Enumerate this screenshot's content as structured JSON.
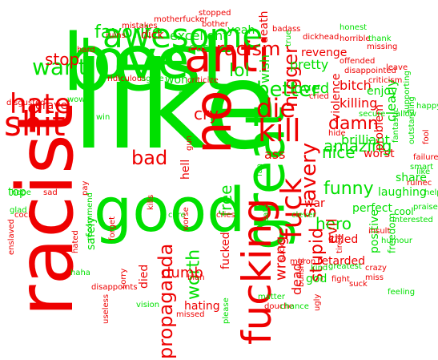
{
  "colors": {
    "positive": "#00e000",
    "negative": "#ee0000"
  },
  "words": [
    {
      "t": "like",
      "c": "positive"
    },
    {
      "t": "best",
      "c": "positive"
    },
    {
      "t": "racist",
      "c": "negative"
    },
    {
      "t": "good",
      "c": "positive"
    },
    {
      "t": "love",
      "c": "positive"
    },
    {
      "t": "no",
      "c": "negative"
    },
    {
      "t": "great",
      "c": "positive"
    },
    {
      "t": "anti",
      "c": "negative"
    },
    {
      "t": "awesome",
      "c": "positive"
    },
    {
      "t": "fucking",
      "c": "negative"
    },
    {
      "t": "shit",
      "c": "negative"
    },
    {
      "t": "hate",
      "c": "negative"
    },
    {
      "t": "kill",
      "c": "negative"
    },
    {
      "t": "fuck",
      "c": "negative"
    },
    {
      "t": "die",
      "c": "negative"
    },
    {
      "t": "better",
      "c": "positive"
    },
    {
      "t": "slavery",
      "c": "negative"
    },
    {
      "t": "want",
      "c": "positive"
    },
    {
      "t": "worth",
      "c": "positive"
    },
    {
      "t": "propaganda",
      "c": "negative"
    },
    {
      "t": "nigger",
      "c": "negative"
    },
    {
      "t": "racism",
      "c": "negative"
    },
    {
      "t": "favorite",
      "c": "positive"
    },
    {
      "t": "bad",
      "c": "negative"
    },
    {
      "t": "stop",
      "c": "negative"
    },
    {
      "t": "lol",
      "c": "positive"
    },
    {
      "t": "funny",
      "c": "positive"
    },
    {
      "t": "amazing",
      "c": "positive"
    },
    {
      "t": "damn",
      "c": "negative"
    },
    {
      "t": "nice",
      "c": "positive"
    },
    {
      "t": "stupid",
      "c": "negative"
    },
    {
      "t": "wrong",
      "c": "negative"
    },
    {
      "t": "free",
      "c": "positive"
    },
    {
      "t": "cry",
      "c": "negative"
    },
    {
      "t": "hero",
      "c": "positive"
    },
    {
      "t": "loved",
      "c": "positive"
    },
    {
      "t": "brilliant",
      "c": "positive"
    },
    {
      "t": "killing",
      "c": "negative"
    },
    {
      "t": "evil",
      "c": "negative"
    },
    {
      "t": "ass",
      "c": "negative"
    },
    {
      "t": "dead",
      "c": "negative"
    },
    {
      "t": "dumb",
      "c": "negative"
    },
    {
      "t": "hating",
      "c": "negative"
    },
    {
      "t": "won",
      "c": "positive"
    },
    {
      "t": "excellent",
      "c": "positive"
    },
    {
      "t": "pretty",
      "c": "positive"
    },
    {
      "t": "bitch",
      "c": "negative"
    },
    {
      "t": "violence",
      "c": "negative"
    },
    {
      "t": "clearly",
      "c": "positive"
    },
    {
      "t": "problem",
      "c": "negative"
    },
    {
      "t": "worst",
      "c": "negative"
    },
    {
      "t": "share",
      "c": "positive"
    },
    {
      "t": "laughing",
      "c": "positive"
    },
    {
      "t": "perfect",
      "c": "positive"
    },
    {
      "t": "killed",
      "c": "negative"
    },
    {
      "t": "retarded",
      "c": "negative"
    },
    {
      "t": "positive",
      "c": "positive"
    },
    {
      "t": "war",
      "c": "negative"
    },
    {
      "t": "god",
      "c": "positive"
    },
    {
      "t": "cool",
      "c": "positive"
    },
    {
      "t": "freedom",
      "c": "positive"
    },
    {
      "t": "safely",
      "c": "positive"
    },
    {
      "t": "top",
      "c": "positive"
    },
    {
      "t": "grave",
      "c": "negative"
    },
    {
      "t": "died",
      "c": "negative"
    },
    {
      "t": "fucked",
      "c": "negative"
    },
    {
      "t": "hell",
      "c": "negative"
    },
    {
      "t": "wish",
      "c": "positive"
    },
    {
      "t": "revenge",
      "c": "negative"
    },
    {
      "t": "enjoy",
      "c": "positive"
    },
    {
      "t": "easy",
      "c": "positive"
    },
    {
      "t": "yeah",
      "c": "positive"
    },
    {
      "t": "dick",
      "c": "negative"
    },
    {
      "t": "death",
      "c": "negative"
    },
    {
      "t": "offended",
      "c": "negative"
    },
    {
      "t": "disappointed",
      "c": "negative"
    },
    {
      "t": "criticism",
      "c": "negative"
    },
    {
      "t": "dickhead",
      "c": "negative"
    },
    {
      "t": "horrible",
      "c": "negative"
    },
    {
      "t": "thank",
      "c": "positive"
    },
    {
      "t": "honest",
      "c": "positive"
    },
    {
      "t": "missing",
      "c": "negative"
    },
    {
      "t": "badass",
      "c": "negative"
    },
    {
      "t": "true",
      "c": "positive"
    },
    {
      "t": "bother",
      "c": "negative"
    },
    {
      "t": "stopped",
      "c": "negative"
    },
    {
      "t": "motherfucker",
      "c": "negative"
    },
    {
      "t": "mistakes",
      "c": "negative"
    },
    {
      "t": "ruins",
      "c": "negative"
    },
    {
      "t": "hard",
      "c": "negative"
    },
    {
      "t": "ridiculous",
      "c": "negative"
    },
    {
      "t": "agree",
      "c": "positive"
    },
    {
      "t": "criticize",
      "c": "negative"
    },
    {
      "t": "disgusted",
      "c": "negative"
    },
    {
      "t": "wow",
      "c": "positive"
    },
    {
      "t": "glad",
      "c": "positive"
    },
    {
      "t": "win",
      "c": "positive"
    },
    {
      "t": "hope",
      "c": "positive"
    },
    {
      "t": "sad",
      "c": "negative"
    },
    {
      "t": "pay",
      "c": "negative"
    },
    {
      "t": "recommend",
      "c": "positive"
    },
    {
      "t": "forget",
      "c": "negative"
    },
    {
      "t": "kills",
      "c": "negative"
    },
    {
      "t": "enslaved",
      "c": "negative"
    },
    {
      "t": "cock",
      "c": "negative"
    },
    {
      "t": "hated",
      "c": "negative"
    },
    {
      "t": "haha",
      "c": "positive"
    },
    {
      "t": "sorry",
      "c": "negative"
    },
    {
      "t": "disappoints",
      "c": "negative"
    },
    {
      "t": "useless",
      "c": "negative"
    },
    {
      "t": "vision",
      "c": "positive"
    },
    {
      "t": "missed",
      "c": "negative"
    },
    {
      "t": "blah",
      "c": "negative"
    },
    {
      "t": "care",
      "c": "positive"
    },
    {
      "t": "cries",
      "c": "negative"
    },
    {
      "t": "worse",
      "c": "negative"
    },
    {
      "t": "fine",
      "c": "positive"
    },
    {
      "t": "gun",
      "c": "negative"
    },
    {
      "t": "please",
      "c": "positive"
    },
    {
      "t": "matter",
      "c": "positive"
    },
    {
      "t": "douche",
      "c": "negative"
    },
    {
      "t": "chance",
      "c": "positive"
    },
    {
      "t": "clever",
      "c": "positive"
    },
    {
      "t": "bullshit",
      "c": "negative"
    },
    {
      "t": "sucks",
      "c": "negative"
    },
    {
      "t": "moron",
      "c": "negative"
    },
    {
      "t": "safe",
      "c": "positive"
    },
    {
      "t": "fan",
      "c": "positive"
    },
    {
      "t": "ugly",
      "c": "negative"
    },
    {
      "t": "kind",
      "c": "positive"
    },
    {
      "t": "fight",
      "c": "negative"
    },
    {
      "t": "greatest",
      "c": "positive"
    },
    {
      "t": "suck",
      "c": "negative"
    },
    {
      "t": "crazy",
      "c": "negative"
    },
    {
      "t": "miss",
      "c": "negative"
    },
    {
      "t": "feeling",
      "c": "positive"
    },
    {
      "t": "insult",
      "c": "negative"
    },
    {
      "t": "humour",
      "c": "positive"
    },
    {
      "t": "interested",
      "c": "positive"
    },
    {
      "t": "praise",
      "c": "positive"
    },
    {
      "t": "help",
      "c": "positive"
    },
    {
      "t": "like",
      "c": "positive"
    },
    {
      "t": "ruinec",
      "c": "negative"
    },
    {
      "t": "smart",
      "c": "positive"
    },
    {
      "t": "failure",
      "c": "negative"
    },
    {
      "t": "fantastic",
      "c": "positive"
    },
    {
      "t": "outstanding",
      "c": "positive"
    },
    {
      "t": "fool",
      "c": "negative"
    },
    {
      "t": "happy",
      "c": "positive"
    },
    {
      "t": "allow",
      "c": "positive"
    },
    {
      "t": "supporting",
      "c": "positive"
    },
    {
      "t": "leave",
      "c": "negative"
    },
    {
      "t": "secure",
      "c": "positive"
    },
    {
      "t": "hide",
      "c": "negative"
    },
    {
      "t": "cried",
      "c": "negative"
    },
    {
      "t": "tired",
      "c": "negative"
    }
  ]
}
